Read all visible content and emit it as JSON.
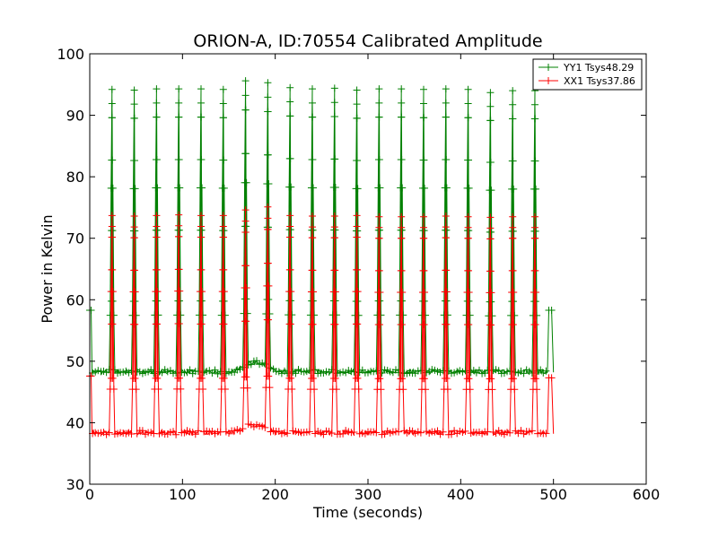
{
  "chart_data": {
    "type": "line",
    "title": "ORION-A, ID:70554 Calibrated Amplitude",
    "xlabel": "Time (seconds)",
    "ylabel": "Power in Kelvin",
    "xlim": [
      0,
      600
    ],
    "ylim": [
      30,
      100
    ],
    "xticks": [
      0,
      100,
      200,
      300,
      400,
      500,
      600
    ],
    "yticks": [
      30,
      40,
      50,
      60,
      70,
      80,
      90,
      100
    ],
    "grid": false,
    "legend_position": "top-right",
    "marker": "plus",
    "pulse_times": [
      24,
      48,
      72,
      96,
      120,
      144,
      168,
      192,
      216,
      240,
      264,
      288,
      312,
      336,
      360,
      384,
      408,
      432,
      456,
      480
    ],
    "series": [
      {
        "name": "YY1 Tsys48.29",
        "color": "#008000",
        "baseline": 48.3,
        "start": {
          "x": [
            0,
            1.5,
            2.5
          ],
          "y": [
            58.3,
            58.3,
            48.2
          ]
        },
        "end": {
          "x": [
            493.5,
            495,
            498,
            500
          ],
          "y": [
            48.2,
            58.3,
            58.3,
            48.2
          ]
        },
        "peaks": [
          94.2,
          94.1,
          94.3,
          94.3,
          94.3,
          94.2,
          95.6,
          95.3,
          94.5,
          94.3,
          94.4,
          94.1,
          94.3,
          94.3,
          94.2,
          94.3,
          94.2,
          93.7,
          94.0,
          94.0
        ],
        "bump": {
          "x_start": 155,
          "x_end": 200,
          "height": 1.5
        }
      },
      {
        "name": "XX1 Tsys37.86",
        "color": "#ff0000",
        "baseline": 38.4,
        "start": {
          "x": [
            0,
            1.5,
            2.5
          ],
          "y": [
            47.6,
            47.6,
            38.4
          ]
        },
        "end": {
          "x": [
            493.5,
            495,
            498,
            500
          ],
          "y": [
            38.4,
            47.3,
            47.3,
            38.2
          ]
        },
        "peaks": [
          73.7,
          73.6,
          73.7,
          73.8,
          73.7,
          73.7,
          74.6,
          75.1,
          73.7,
          73.6,
          73.6,
          73.7,
          73.5,
          73.5,
          73.5,
          73.6,
          73.5,
          73.4,
          73.5,
          73.5
        ],
        "bump": {
          "x_start": 155,
          "x_end": 200,
          "height": 1.2
        }
      }
    ]
  }
}
